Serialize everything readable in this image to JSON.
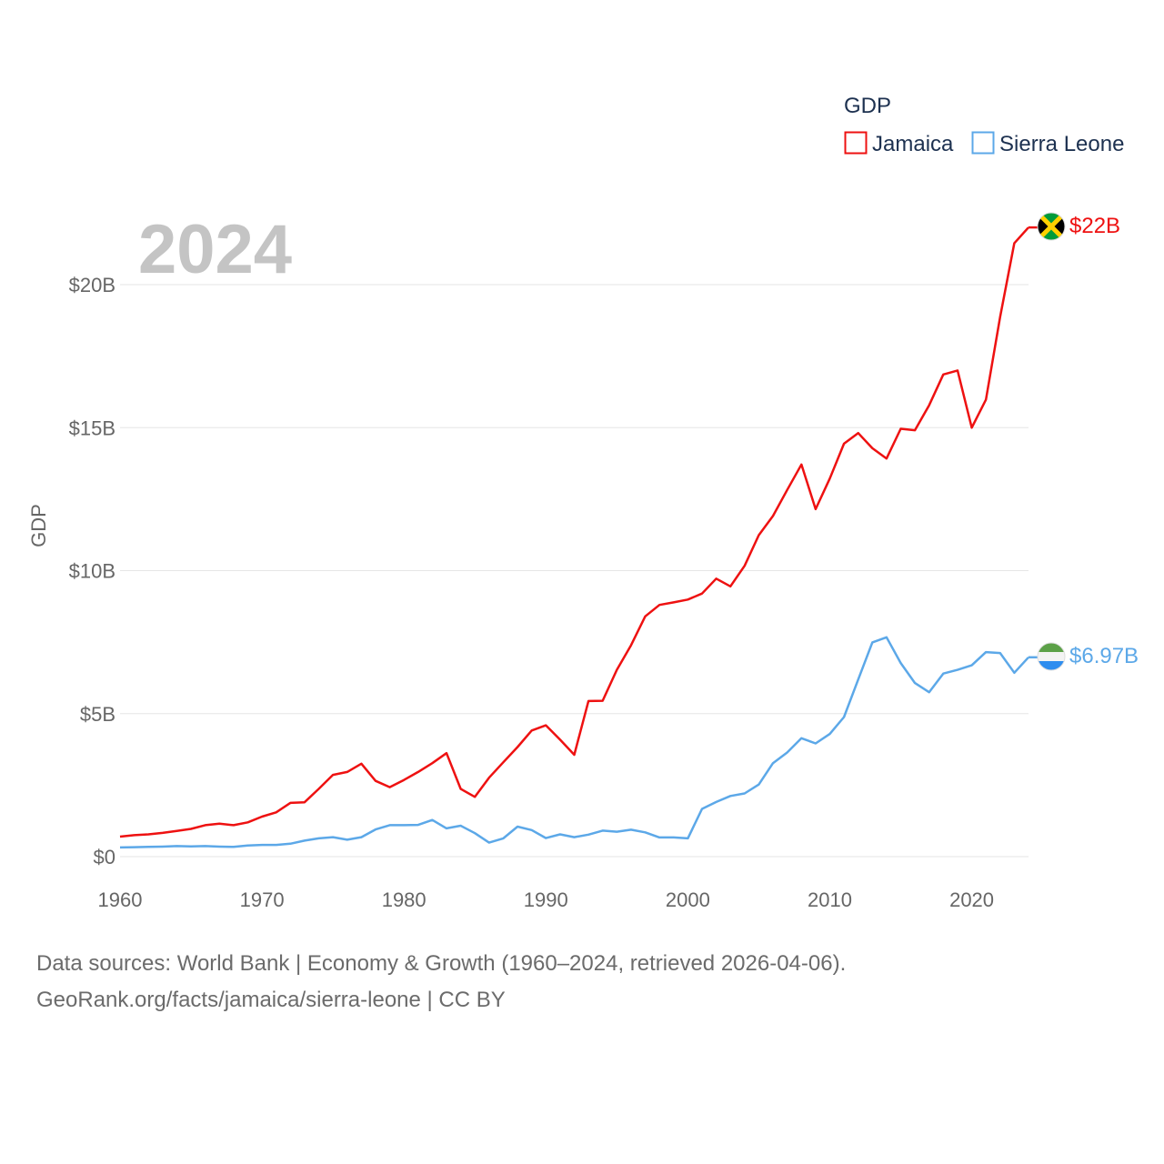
{
  "big_year": "2024",
  "legend": {
    "title": "GDP",
    "items": [
      {
        "label": "Jamaica",
        "color": "#ee1111"
      },
      {
        "label": "Sierra Leone",
        "color": "#5ca8e8"
      }
    ]
  },
  "source": {
    "line1": "Data sources: World Bank | Economy & Growth (1960–2024, retrieved 2026-04-06).",
    "line2": "GeoRank.org/facts/jamaica/sierra-leone | CC BY"
  },
  "chart_data": {
    "type": "line",
    "title": "GDP",
    "xlabel": "",
    "ylabel": "GDP",
    "xlim": [
      1960,
      2024
    ],
    "ylim": [
      0,
      20
    ],
    "y_unit": "billion USD",
    "x_ticks": [
      {
        "value": 1960,
        "label": "1960"
      },
      {
        "value": 1970,
        "label": "1970"
      },
      {
        "value": 1980,
        "label": "1980"
      },
      {
        "value": 1990,
        "label": "1990"
      },
      {
        "value": 2000,
        "label": "2000"
      },
      {
        "value": 2010,
        "label": "2010"
      },
      {
        "value": 2020,
        "label": "2020"
      }
    ],
    "y_ticks": [
      {
        "value": 0,
        "label": "$0"
      },
      {
        "value": 5,
        "label": "$5B"
      },
      {
        "value": 10,
        "label": "$10B"
      },
      {
        "value": 15,
        "label": "$15B"
      },
      {
        "value": 20,
        "label": "$20B"
      }
    ],
    "grid": true,
    "legend_position": "top-right",
    "series": [
      {
        "name": "Jamaica",
        "color": "#ee1111",
        "end_label": "$22B",
        "flag": "jamaica-flag",
        "x": [
          1960,
          1961,
          1962,
          1963,
          1964,
          1965,
          1966,
          1967,
          1968,
          1969,
          1970,
          1971,
          1972,
          1973,
          1974,
          1975,
          1976,
          1977,
          1978,
          1979,
          1980,
          1981,
          1982,
          1983,
          1984,
          1985,
          1986,
          1987,
          1988,
          1989,
          1990,
          1991,
          1992,
          1993,
          1994,
          1995,
          1996,
          1997,
          1998,
          1999,
          2000,
          2001,
          2002,
          2003,
          2004,
          2005,
          2006,
          2007,
          2008,
          2009,
          2010,
          2011,
          2012,
          2013,
          2014,
          2015,
          2016,
          2017,
          2018,
          2019,
          2020,
          2021,
          2022,
          2023,
          2024
        ],
        "values": [
          0.7,
          0.75,
          0.78,
          0.83,
          0.9,
          0.97,
          1.1,
          1.15,
          1.1,
          1.2,
          1.4,
          1.55,
          1.88,
          1.9,
          2.37,
          2.86,
          2.96,
          3.25,
          2.65,
          2.43,
          2.68,
          2.96,
          3.27,
          3.62,
          2.37,
          2.09,
          2.76,
          3.3,
          3.83,
          4.41,
          4.59,
          4.09,
          3.56,
          5.44,
          5.45,
          6.53,
          7.39,
          8.4,
          8.8,
          8.89,
          8.99,
          9.2,
          9.72,
          9.45,
          10.17,
          11.24,
          11.91,
          12.82,
          13.71,
          12.15,
          13.22,
          14.44,
          14.81,
          14.28,
          13.92,
          14.96,
          14.91,
          15.78,
          16.86,
          17.0,
          15.0,
          15.98,
          18.87,
          21.45,
          22.0
        ]
      },
      {
        "name": "Sierra Leone",
        "color": "#5ca8e8",
        "end_label": "$6.97B",
        "flag": "sierra-leone-flag",
        "x": [
          1960,
          1961,
          1962,
          1963,
          1964,
          1965,
          1966,
          1967,
          1968,
          1969,
          1970,
          1971,
          1972,
          1973,
          1974,
          1975,
          1976,
          1977,
          1978,
          1979,
          1980,
          1981,
          1982,
          1983,
          1984,
          1985,
          1986,
          1987,
          1988,
          1989,
          1990,
          1991,
          1992,
          1993,
          1994,
          1995,
          1996,
          1997,
          1998,
          1999,
          2000,
          2001,
          2002,
          2003,
          2004,
          2005,
          2006,
          2007,
          2008,
          2009,
          2010,
          2011,
          2012,
          2013,
          2014,
          2015,
          2016,
          2017,
          2018,
          2019,
          2020,
          2021,
          2022,
          2023,
          2024
        ],
        "values": [
          0.32,
          0.33,
          0.34,
          0.35,
          0.37,
          0.36,
          0.37,
          0.35,
          0.34,
          0.39,
          0.41,
          0.41,
          0.45,
          0.56,
          0.64,
          0.68,
          0.59,
          0.68,
          0.95,
          1.1,
          1.1,
          1.11,
          1.28,
          0.99,
          1.08,
          0.82,
          0.49,
          0.64,
          1.05,
          0.93,
          0.65,
          0.78,
          0.68,
          0.77,
          0.91,
          0.87,
          0.94,
          0.85,
          0.67,
          0.67,
          0.64,
          1.67,
          1.91,
          2.12,
          2.21,
          2.52,
          3.27,
          3.64,
          4.14,
          3.96,
          4.29,
          4.88,
          6.19,
          7.49,
          7.67,
          6.77,
          6.07,
          5.75,
          6.4,
          6.53,
          6.69,
          7.15,
          7.12,
          6.43,
          6.97
        ]
      }
    ]
  }
}
